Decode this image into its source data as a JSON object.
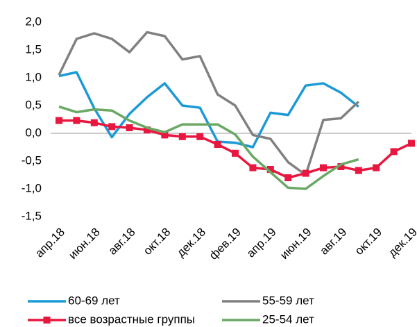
{
  "chart_data": {
    "type": "line",
    "categories": [
      "апр.18",
      null,
      "июн.18",
      null,
      "авг.18",
      null,
      "окт.18",
      null,
      "дек.18",
      null,
      "фев.19",
      null,
      "апр.19",
      null,
      "июн.19",
      null,
      "авг.19",
      null,
      "окт.19",
      null,
      "дек.19"
    ],
    "series": [
      {
        "name": "60-69 лет",
        "color": "#1b9ad6",
        "values": [
          1.03,
          1.1,
          0.45,
          -0.07,
          0.35,
          0.65,
          0.9,
          0.5,
          0.46,
          -0.15,
          -0.17,
          -0.25,
          0.37,
          0.33,
          0.86,
          0.9,
          0.73,
          0.48,
          null,
          null,
          null
        ]
      },
      {
        "name": "55-59 лет",
        "color": "#808080",
        "values": [
          1.05,
          1.7,
          1.8,
          1.7,
          1.46,
          1.82,
          1.75,
          1.33,
          1.39,
          0.7,
          0.5,
          -0.03,
          -0.1,
          -0.52,
          -0.75,
          0.24,
          0.27,
          0.57,
          null,
          null,
          null
        ]
      },
      {
        "name": "все возрастные группы",
        "color": "#e8173f",
        "marker": "square",
        "values": [
          0.23,
          0.23,
          0.19,
          0.12,
          0.1,
          0.06,
          -0.03,
          -0.06,
          -0.06,
          -0.2,
          -0.36,
          -0.62,
          -0.65,
          -0.8,
          -0.72,
          -0.62,
          -0.6,
          -0.67,
          -0.62,
          -0.33,
          -0.18
        ]
      },
      {
        "name": "25-54 лет",
        "color": "#6aa864",
        "values": [
          0.48,
          0.38,
          0.43,
          0.41,
          0.23,
          0.1,
          0.02,
          0.16,
          0.16,
          0.16,
          -0.02,
          -0.42,
          -0.7,
          -0.98,
          -1.0,
          -0.77,
          -0.56,
          -0.47,
          null,
          null,
          null
        ]
      }
    ],
    "ylim": [
      -1.5,
      2
    ],
    "yticks": [
      {
        "value": -1.5,
        "label": "-1,5"
      },
      {
        "value": -1,
        "label": "-1,0"
      },
      {
        "value": -0.5,
        "label": "-0,5"
      },
      {
        "value": 0,
        "label": "0,0"
      },
      {
        "value": 0.5,
        "label": "0,5"
      },
      {
        "value": 1,
        "label": "1,0"
      },
      {
        "value": 1.5,
        "label": "1,5"
      },
      {
        "value": 2,
        "label": "2,0"
      }
    ],
    "grid": false,
    "legend": "bottom"
  }
}
